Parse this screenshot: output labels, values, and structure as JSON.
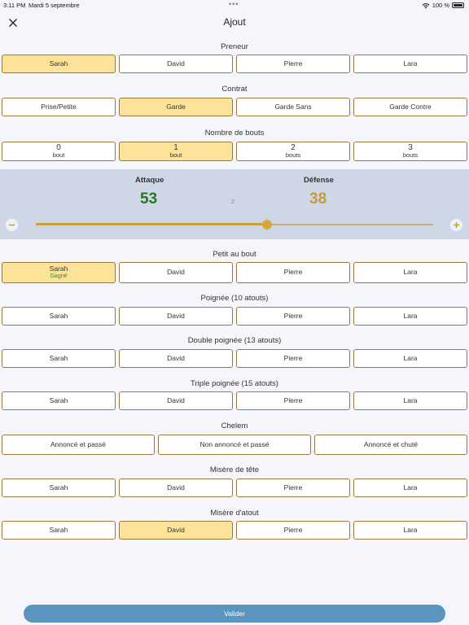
{
  "status_bar": {
    "time": "3:11 PM",
    "date": "Mardi 5 septembre",
    "dots": "•••",
    "battery": "100 %"
  },
  "header": {
    "title": "Ajout",
    "close_icon": "close-icon"
  },
  "preneur": {
    "label": "Preneur",
    "options": [
      {
        "name": "Sarah",
        "selected": true
      },
      {
        "name": "David",
        "selected": false
      },
      {
        "name": "Pierre",
        "selected": false
      },
      {
        "name": "Lara",
        "selected": false
      }
    ]
  },
  "contrat": {
    "label": "Contrat",
    "options": [
      {
        "name": "Prise/Petite",
        "selected": false
      },
      {
        "name": "Garde",
        "selected": true
      },
      {
        "name": "Garde Sans",
        "selected": false
      },
      {
        "name": "Garde Contre",
        "selected": false
      }
    ]
  },
  "bouts": {
    "label": "Nombre de bouts",
    "options": [
      {
        "count": "0",
        "unit": "bout",
        "selected": false
      },
      {
        "count": "1",
        "unit": "bout",
        "selected": true
      },
      {
        "count": "2",
        "unit": "bouts",
        "selected": false
      },
      {
        "count": "3",
        "unit": "bouts",
        "selected": false
      }
    ]
  },
  "score": {
    "attack_label": "Attaque",
    "attack_value": "53",
    "defense_label": "Défense",
    "defense_value": "38",
    "diff": "2",
    "attack_color": "#1e7d1e",
    "defense_color": "#c79a33",
    "slider_fraction": 0.582,
    "minus_icon": "minus-circle-icon",
    "plus_icon": "plus-circle-icon"
  },
  "petit_au_bout": {
    "label": "Petit au bout",
    "options": [
      {
        "name": "Sarah",
        "status": "Gagné",
        "selected": true
      },
      {
        "name": "David",
        "selected": false
      },
      {
        "name": "Pierre",
        "selected": false
      },
      {
        "name": "Lara",
        "selected": false
      }
    ]
  },
  "poignee": {
    "label": "Poignée (10 atouts)",
    "options": [
      {
        "name": "Sarah",
        "selected": false
      },
      {
        "name": "David",
        "selected": false
      },
      {
        "name": "Pierre",
        "selected": false
      },
      {
        "name": "Lara",
        "selected": false
      }
    ]
  },
  "double_poignee": {
    "label": "Double poignée (13 atouts)",
    "options": [
      {
        "name": "Sarah",
        "selected": false
      },
      {
        "name": "David",
        "selected": false
      },
      {
        "name": "Pierre",
        "selected": false
      },
      {
        "name": "Lara",
        "selected": false
      }
    ]
  },
  "triple_poignee": {
    "label": "Triple poignée (15 atouts)",
    "options": [
      {
        "name": "Sarah",
        "selected": false
      },
      {
        "name": "David",
        "selected": false
      },
      {
        "name": "Pierre",
        "selected": false
      },
      {
        "name": "Lara",
        "selected": false
      }
    ]
  },
  "chelem": {
    "label": "Chelem",
    "options": [
      {
        "name": "Annoncé et passé",
        "selected": false
      },
      {
        "name": "Non annoncé et passé",
        "selected": false
      },
      {
        "name": "Annoncé et chuté",
        "selected": false
      }
    ]
  },
  "misere_tete": {
    "label": "Misère de tête",
    "options": [
      {
        "name": "Sarah",
        "selected": false
      },
      {
        "name": "David",
        "selected": false
      },
      {
        "name": "Pierre",
        "selected": false
      },
      {
        "name": "Lara",
        "selected": false
      }
    ]
  },
  "misere_atout": {
    "label": "Misère d'atout",
    "options": [
      {
        "name": "Sarah",
        "selected": false
      },
      {
        "name": "David",
        "selected": true
      },
      {
        "name": "Pierre",
        "selected": false
      },
      {
        "name": "Lara",
        "selected": false
      }
    ]
  },
  "submit_label": "Valider",
  "colors": {
    "selected_bg": "#fde39a",
    "border": "#9a7a3a",
    "panel": "#cfd7e6",
    "submit": "#5a94bf"
  }
}
